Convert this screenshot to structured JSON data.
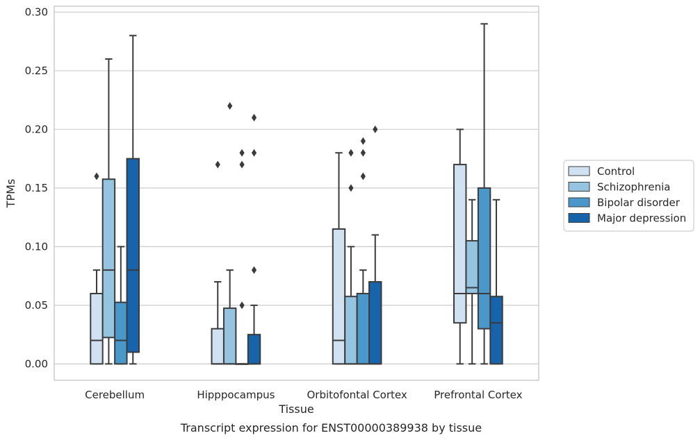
{
  "chart_data": {
    "type": "box",
    "caption": "Transcript expression for ENST00000389938 by tissue",
    "xlabel": "Tissue",
    "ylabel": "TPMs",
    "ylim": [
      -0.014,
      0.305
    ],
    "yticks": [
      0.0,
      0.05,
      0.1,
      0.15,
      0.2,
      0.25,
      0.3
    ],
    "ytick_labels": [
      "0.00",
      "0.05",
      "0.10",
      "0.15",
      "0.20",
      "0.25",
      "0.30"
    ],
    "grid": "horizontal",
    "legend_position": "right",
    "categories": [
      "Cerebellum",
      "Hipppocampus",
      "Orbitofontal Cortex",
      "Prefrontal Cortex"
    ],
    "series": [
      {
        "name": "Control",
        "color": "#d0e1f2",
        "boxes": [
          {
            "whislo": 0.0,
            "q1": 0.0,
            "med": 0.02,
            "q3": 0.06,
            "whishi": 0.08,
            "fliers": [
              0.16
            ]
          },
          {
            "whislo": 0.0,
            "q1": 0.0,
            "med": 0.0,
            "q3": 0.03,
            "whishi": 0.07,
            "fliers": [
              0.17
            ]
          },
          {
            "whislo": 0.0,
            "q1": 0.0,
            "med": 0.02,
            "q3": 0.115,
            "whishi": 0.18,
            "fliers": []
          },
          {
            "whislo": 0.0,
            "q1": 0.035,
            "med": 0.06,
            "q3": 0.17,
            "whishi": 0.2,
            "fliers": []
          }
        ]
      },
      {
        "name": "Schizophrenia",
        "color": "#94c4df",
        "boxes": [
          {
            "whislo": 0.0,
            "q1": 0.0225,
            "med": 0.08,
            "q3": 0.1575,
            "whishi": 0.26,
            "fliers": []
          },
          {
            "whislo": 0.0,
            "q1": 0.0,
            "med": 0.0,
            "q3": 0.0475,
            "whishi": 0.08,
            "fliers": [
              0.22
            ]
          },
          {
            "whislo": 0.0,
            "q1": 0.0,
            "med": 0.0,
            "q3": 0.0575,
            "whishi": 0.1,
            "fliers": [
              0.15,
              0.18
            ]
          },
          {
            "whislo": 0.0,
            "q1": 0.06,
            "med": 0.065,
            "q3": 0.105,
            "whishi": 0.14,
            "fliers": []
          }
        ]
      },
      {
        "name": "Bipolar disorder",
        "color": "#4a98c9",
        "boxes": [
          {
            "whislo": 0.0,
            "q1": 0.0,
            "med": 0.02,
            "q3": 0.0525,
            "whishi": 0.1,
            "fliers": []
          },
          {
            "whislo": 0.0,
            "q1": 0.0,
            "med": 0.0,
            "q3": 0.0,
            "whishi": 0.0,
            "fliers": [
              0.05,
              0.17,
              0.18
            ]
          },
          {
            "whislo": 0.0,
            "q1": 0.0,
            "med": 0.0,
            "q3": 0.06,
            "whishi": 0.08,
            "fliers": [
              0.16,
              0.18,
              0.19
            ]
          },
          {
            "whislo": 0.0,
            "q1": 0.03,
            "med": 0.06,
            "q3": 0.15,
            "whishi": 0.29,
            "fliers": []
          }
        ]
      },
      {
        "name": "Major depression",
        "color": "#1764ab",
        "boxes": [
          {
            "whislo": 0.0,
            "q1": 0.01,
            "med": 0.08,
            "q3": 0.175,
            "whishi": 0.28,
            "fliers": []
          },
          {
            "whislo": 0.0,
            "q1": 0.0,
            "med": 0.0,
            "q3": 0.025,
            "whishi": 0.05,
            "fliers": [
              0.08,
              0.18,
              0.21
            ]
          },
          {
            "whislo": 0.0,
            "q1": 0.0,
            "med": 0.0,
            "q3": 0.07,
            "whishi": 0.11,
            "fliers": [
              0.2
            ]
          },
          {
            "whislo": 0.0,
            "q1": 0.0,
            "med": 0.035,
            "q3": 0.0575,
            "whishi": 0.14,
            "fliers": []
          }
        ]
      }
    ]
  }
}
